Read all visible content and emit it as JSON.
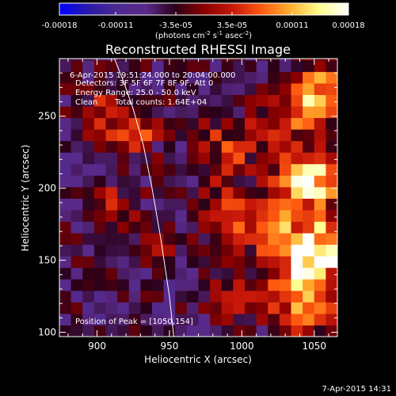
{
  "chart_data": {
    "type": "heatmap",
    "title": "Reconstructed RHESSI Image",
    "xlabel": "Heliocentric X (arcsec)",
    "ylabel": "Heliocentric Y (arcsec)",
    "xlim": [
      874,
      1066
    ],
    "ylim": [
      97,
      290
    ],
    "x_ticks": [
      900,
      950,
      1000,
      1050
    ],
    "y_ticks": [
      100,
      150,
      200,
      250
    ],
    "colorbar": {
      "range": [
        -0.00018,
        0.00018
      ],
      "tick_values": [
        -0.00018,
        -0.00011,
        -3.5e-05,
        3.5e-05,
        0.00011,
        0.00018
      ],
      "tick_labels": [
        "-0.00018",
        "-0.00011",
        "-3.5e-05",
        "3.5e-05",
        "0.00011",
        "0.00018"
      ],
      "unit_prefix": "(photons cm",
      "unit_sup1": "-2",
      "unit_mid": " s",
      "unit_sup2": "-1",
      "unit_mid2": " asec",
      "unit_sup3": "-2",
      "unit_suffix": ")",
      "colormap": [
        "#0000ff",
        "#2a1aa8",
        "#4b2a8f",
        "#5a2a8a",
        "#2a0018",
        "#8a0000",
        "#c8180a",
        "#ff5a10",
        "#ffb030",
        "#ffff90",
        "#ffffff"
      ]
    },
    "grid": false,
    "limb_curve": {
      "x": [
        912,
        918,
        925,
        932,
        938,
        944,
        950,
        953
      ],
      "y": [
        290,
        275,
        255,
        230,
        200,
        165,
        125,
        97
      ]
    },
    "peak_marker": {
      "x": 1050,
      "y": 154
    },
    "field": {
      "x_range": [
        874,
        1066
      ],
      "y_range": [
        97,
        290
      ],
      "cell_size": 8,
      "background": -5e-05,
      "noise_amplitude": 4e-05,
      "sources": [
        {
          "x": 1050,
          "y": 154,
          "amp": 0.00024,
          "sigma": 16
        },
        {
          "x": 1045,
          "y": 205,
          "amp": 0.00021,
          "sigma": 14
        },
        {
          "x": 1040,
          "y": 120,
          "amp": 0.00016,
          "sigma": 14
        },
        {
          "x": 1055,
          "y": 265,
          "amp": 0.00015,
          "sigma": 14
        },
        {
          "x": 1015,
          "y": 175,
          "amp": 0.00012,
          "sigma": 14
        },
        {
          "x": 990,
          "y": 230,
          "amp": 0.0001,
          "sigma": 14
        },
        {
          "x": 985,
          "y": 185,
          "amp": 9e-05,
          "sigma": 12
        },
        {
          "x": 905,
          "y": 250,
          "amp": 0.0001,
          "sigma": 12
        },
        {
          "x": 930,
          "y": 235,
          "amp": 8e-05,
          "sigma": 10
        },
        {
          "x": 915,
          "y": 190,
          "amp": 7e-05,
          "sigma": 10
        },
        {
          "x": 945,
          "y": 160,
          "amp": 6e-05,
          "sigma": 10
        },
        {
          "x": 995,
          "y": 125,
          "amp": 7e-05,
          "sigma": 12
        },
        {
          "x": 1030,
          "y": 245,
          "amp": 9e-05,
          "sigma": 12
        }
      ]
    }
  },
  "info": {
    "time_range": "6-Apr-2015 19:51:24.000 to 20:04:00.000",
    "detectors": "Detectors: 3F 5F 6F 7F 8F 9F, Att 0",
    "energy_range": "Energy Range: 25.0 - 50.0 keV",
    "clean_label": "Clean",
    "total_counts": "Total counts: 1.64E+04",
    "peak_position": "Position of Peak = [1050,154]"
  },
  "footer": {
    "timestamp": "7-Apr-2015 14:31"
  },
  "colors": {
    "background": "#000000",
    "axes": "#ffffff",
    "limb_curve": "#ffffff"
  }
}
